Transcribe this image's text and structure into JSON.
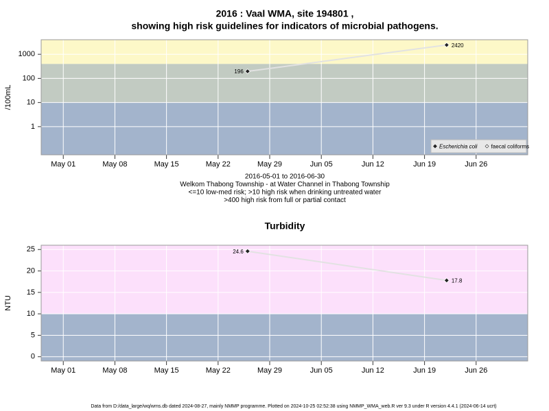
{
  "header": {
    "title": "2016 : Vaal WMA, site 194801 ,",
    "subtitle": "showing high risk guidelines for indicators of microbial pathogens."
  },
  "chart_data": [
    {
      "type": "line",
      "log_y": true,
      "ylabel": "/100mL",
      "x": [
        "2016-05-26",
        "2016-06-22"
      ],
      "xlim": [
        "2016-04-28",
        "2016-07-03"
      ],
      "xticks": [
        {
          "value": "2016-05-01",
          "label": "May 01"
        },
        {
          "value": "2016-05-08",
          "label": "May 08"
        },
        {
          "value": "2016-05-15",
          "label": "May 15"
        },
        {
          "value": "2016-05-22",
          "label": "May 22"
        },
        {
          "value": "2016-05-29",
          "label": "May 29"
        },
        {
          "value": "2016-06-05",
          "label": "Jun 05"
        },
        {
          "value": "2016-06-12",
          "label": "Jun 12"
        },
        {
          "value": "2016-06-19",
          "label": "Jun 19"
        },
        {
          "value": "2016-06-26",
          "label": "Jun 26"
        }
      ],
      "ylim": [
        0.068,
        4000
      ],
      "yticks": [
        1,
        10,
        100,
        1000
      ],
      "grid": true,
      "thresholds": [
        10,
        400
      ],
      "band_colors": [
        "#a3b4cc",
        "#c2cbc2",
        "#fdf8c8"
      ],
      "line_color": "#e2e2e2",
      "legend": "bottom-right",
      "series": [
        {
          "name": "Escherichia coli",
          "color": "#222222",
          "marker": "filled",
          "values": [
            196,
            2420
          ]
        },
        {
          "name": "faecal coliforms",
          "color": "#222222",
          "marker": "open",
          "values": [
            null,
            null
          ]
        }
      ],
      "annotations": [
        "2016-05-01 to 2016-06-30",
        "Welkom Thabong Township - at Water Channel in Thabong Township",
        "<=10 low-med risk; >10 high risk when drinking untreated water",
        ">400 high risk from full or partial contact"
      ]
    },
    {
      "type": "line",
      "log_y": false,
      "title": "Turbidity",
      "ylabel": "NTU",
      "x": [
        "2016-05-26",
        "2016-06-22"
      ],
      "xlim": [
        "2016-04-28",
        "2016-07-03"
      ],
      "xticks": [
        {
          "value": "2016-05-01",
          "label": "May 01"
        },
        {
          "value": "2016-05-08",
          "label": "May 08"
        },
        {
          "value": "2016-05-15",
          "label": "May 15"
        },
        {
          "value": "2016-05-22",
          "label": "May 22"
        },
        {
          "value": "2016-05-29",
          "label": "May 29"
        },
        {
          "value": "2016-06-05",
          "label": "Jun 05"
        },
        {
          "value": "2016-06-12",
          "label": "Jun 12"
        },
        {
          "value": "2016-06-19",
          "label": "Jun 19"
        },
        {
          "value": "2016-06-26",
          "label": "Jun 26"
        }
      ],
      "ylim": [
        -1,
        26
      ],
      "yticks": [
        0,
        5,
        10,
        15,
        20,
        25
      ],
      "grid": true,
      "thresholds": [
        10
      ],
      "band_colors": [
        "#a3b4cc",
        "#fce0fb"
      ],
      "line_color": "#e2e2e2",
      "series": [
        {
          "color": "#222222",
          "marker": "filled",
          "values": [
            24.6,
            17.8
          ]
        }
      ]
    }
  ],
  "footer": "Data from D:/data_large/wq/wms.db dated 2024-08-27, mainly NMMP programme. Plotted on 2024-10-25 02:52:38 using NMMP_WMA_web.R ver 9.3 under R version 4.4.1 (2024-06-14 ucrt)"
}
